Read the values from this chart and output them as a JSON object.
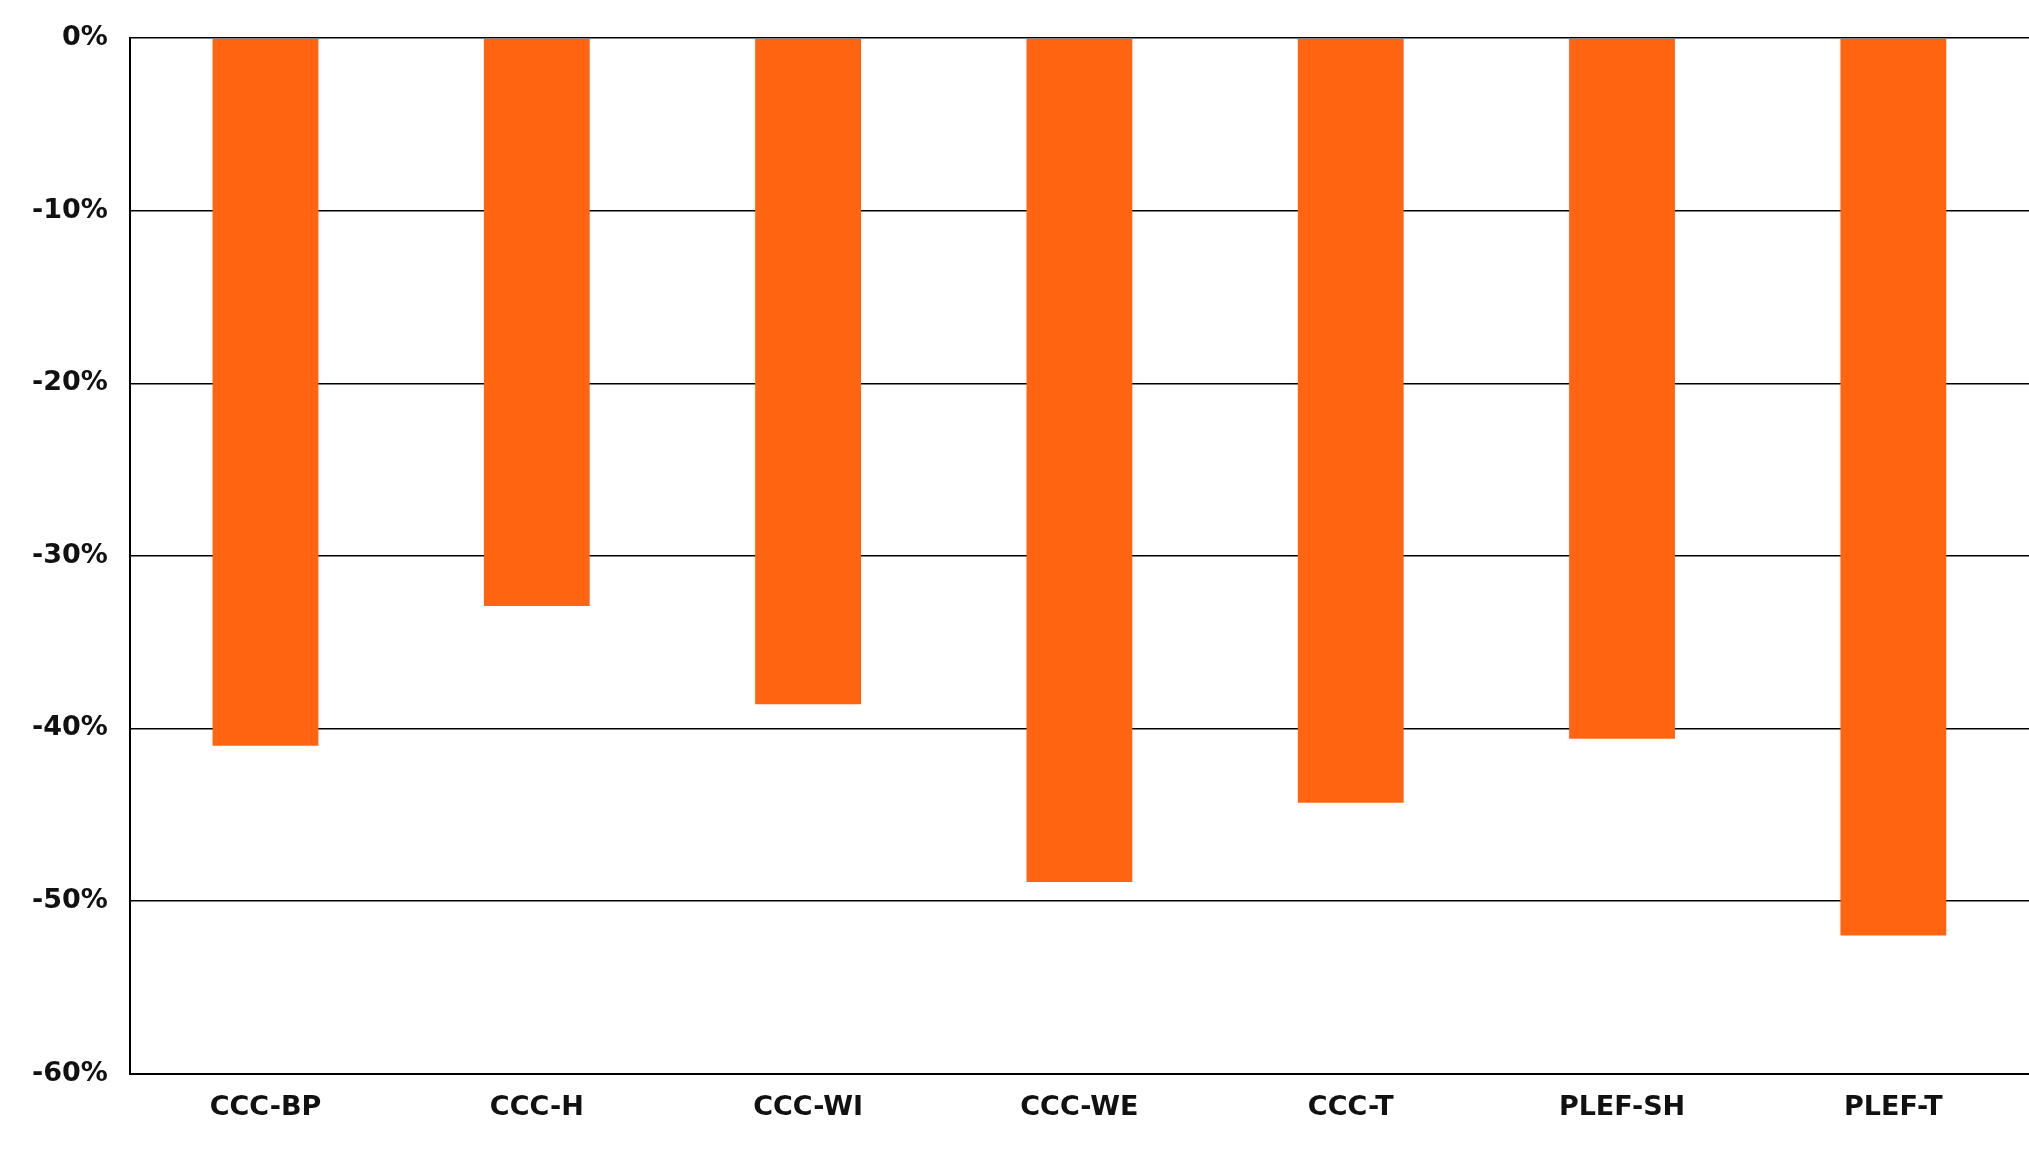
{
  "chart_data": {
    "type": "bar",
    "categories": [
      "CCC-BP",
      "CCC-H",
      "CCC-WI",
      "CCC-WE",
      "CCC-T",
      "PLEF-SH",
      "PLEF-T"
    ],
    "values": [
      -41,
      -32.9,
      -38.6,
      -48.9,
      -44.3,
      -40.6,
      -52
    ],
    "color": "#ff6410",
    "ylim": [
      -60,
      0
    ],
    "yticks": [
      {
        "value": 0,
        "label": "0%"
      },
      {
        "value": -10,
        "label": "-10%"
      },
      {
        "value": -20,
        "label": "-20%"
      },
      {
        "value": -30,
        "label": "-30%"
      },
      {
        "value": -40,
        "label": "-40%"
      },
      {
        "value": -50,
        "label": "-50%"
      },
      {
        "value": -60,
        "label": "-60%"
      }
    ],
    "grid": "y",
    "legend": false
  }
}
